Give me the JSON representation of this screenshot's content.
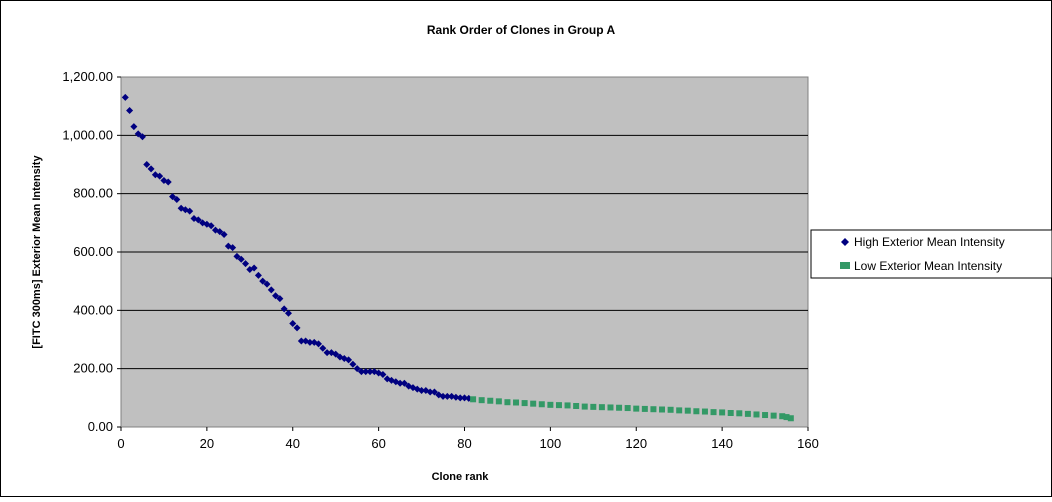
{
  "chart_data": {
    "type": "scatter",
    "title": "Rank Order of Clones in Group A",
    "xlabel": "Clone rank",
    "ylabel": "[FITC 300ms] Exterior Mean Intensity",
    "xlim": [
      0,
      160
    ],
    "ylim": [
      0,
      1200
    ],
    "x_ticks": [
      "0",
      "20",
      "40",
      "60",
      "80",
      "100",
      "120",
      "140",
      "160"
    ],
    "y_ticks": [
      "0.00",
      "200.00",
      "400.00",
      "600.00",
      "800.00",
      "1,000.00",
      "1,200.00"
    ],
    "grid": "horizontal",
    "legend_position": "right",
    "plot_background": "#c0c0c0",
    "series": [
      {
        "name": "High Exterior Mean Intensity",
        "color": "#000080",
        "marker": "diamond",
        "x": [
          1,
          2,
          3,
          4,
          5,
          6,
          7,
          8,
          9,
          10,
          11,
          12,
          13,
          14,
          15,
          16,
          17,
          18,
          19,
          20,
          21,
          22,
          23,
          24,
          25,
          26,
          27,
          28,
          29,
          30,
          31,
          32,
          33,
          34,
          35,
          36,
          37,
          38,
          39,
          40,
          41,
          42,
          43,
          44,
          45,
          46,
          47,
          48,
          49,
          50,
          51,
          52,
          53,
          54,
          55,
          56,
          57,
          58,
          59,
          60,
          61,
          62,
          63,
          64,
          65,
          66,
          67,
          68,
          69,
          70,
          71,
          72,
          73,
          74,
          75,
          76,
          77,
          78,
          79,
          80,
          81
        ],
        "y": [
          1130,
          1085,
          1030,
          1005,
          995,
          900,
          885,
          865,
          860,
          845,
          840,
          790,
          780,
          750,
          745,
          740,
          715,
          710,
          700,
          695,
          690,
          675,
          670,
          660,
          620,
          615,
          585,
          575,
          560,
          540,
          545,
          520,
          500,
          490,
          470,
          450,
          440,
          405,
          390,
          355,
          340,
          295,
          295,
          290,
          290,
          285,
          270,
          255,
          255,
          250,
          240,
          235,
          230,
          215,
          200,
          190,
          190,
          190,
          190,
          185,
          180,
          165,
          160,
          155,
          150,
          150,
          140,
          135,
          130,
          125,
          125,
          120,
          120,
          110,
          105,
          105,
          105,
          102,
          100,
          100,
          98
        ]
      },
      {
        "name": "Low Exterior Mean Intensity",
        "color": "#339966",
        "marker": "square",
        "x": [
          82,
          84,
          86,
          88,
          90,
          92,
          94,
          96,
          98,
          100,
          102,
          104,
          106,
          108,
          110,
          112,
          114,
          116,
          118,
          120,
          122,
          124,
          126,
          128,
          130,
          132,
          134,
          136,
          138,
          140,
          142,
          144,
          146,
          148,
          150,
          152,
          154,
          155,
          156
        ],
        "y": [
          95,
          92,
          90,
          88,
          85,
          84,
          82,
          80,
          78,
          76,
          75,
          74,
          72,
          70,
          69,
          68,
          67,
          66,
          65,
          63,
          62,
          61,
          60,
          59,
          57,
          56,
          54,
          53,
          51,
          50,
          48,
          47,
          45,
          43,
          41,
          39,
          37,
          34,
          30
        ]
      }
    ]
  }
}
